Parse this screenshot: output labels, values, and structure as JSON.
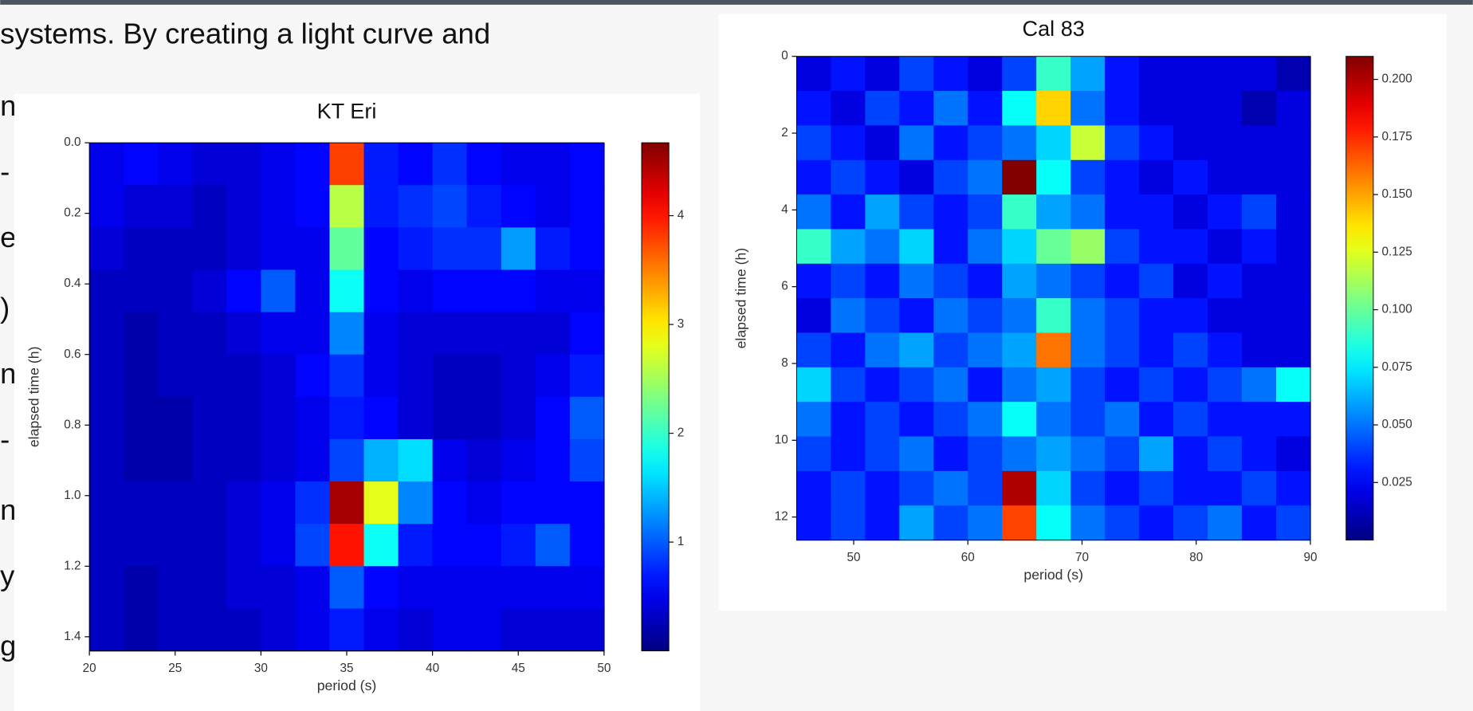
{
  "slide_text": {
    "line": "systems. By creating a light curve and",
    "margin_fragments": [
      "n",
      "-",
      "e",
      ")",
      "n",
      "-",
      "n",
      "y",
      "g"
    ]
  },
  "chart_data": [
    {
      "type": "heatmap",
      "title": "KT Eri",
      "xlabel": "period (s)",
      "ylabel": "elapsed time (h)",
      "xlim": [
        20,
        50
      ],
      "ylim": [
        0,
        1.44
      ],
      "y_axis_inverted": true,
      "xticks": [
        20,
        25,
        30,
        35,
        40,
        45,
        50
      ],
      "yticks": [
        {
          "value": 0,
          "label": "0.0"
        },
        0.2,
        0.4,
        0.6,
        0.8,
        {
          "value": 1,
          "label": "1.0"
        },
        1.2,
        1.4
      ],
      "clim": [
        0,
        4.67
      ],
      "cticks": [
        1,
        2,
        3,
        4
      ],
      "colormap": "jet",
      "z": [
        [
          0.5,
          0.6,
          0.5,
          0.4,
          0.4,
          0.5,
          0.6,
          3.8,
          0.7,
          0.6,
          0.8,
          0.6,
          0.5,
          0.5,
          0.6
        ],
        [
          0.5,
          0.4,
          0.4,
          0.3,
          0.4,
          0.5,
          0.6,
          2.6,
          0.7,
          0.8,
          0.9,
          0.7,
          0.6,
          0.5,
          0.6
        ],
        [
          0.4,
          0.3,
          0.3,
          0.3,
          0.4,
          0.5,
          0.5,
          2.2,
          0.6,
          0.7,
          0.8,
          0.8,
          1.3,
          0.7,
          0.6
        ],
        [
          0.3,
          0.3,
          0.3,
          0.4,
          0.6,
          1.0,
          0.5,
          1.8,
          0.6,
          0.5,
          0.6,
          0.6,
          0.6,
          0.5,
          0.5
        ],
        [
          0.3,
          0.2,
          0.3,
          0.3,
          0.4,
          0.5,
          0.5,
          1.2,
          0.5,
          0.4,
          0.4,
          0.4,
          0.4,
          0.4,
          0.6
        ],
        [
          0.3,
          0.2,
          0.3,
          0.3,
          0.3,
          0.4,
          0.6,
          0.8,
          0.5,
          0.4,
          0.3,
          0.3,
          0.4,
          0.5,
          0.7
        ],
        [
          0.3,
          0.2,
          0.2,
          0.3,
          0.3,
          0.4,
          0.5,
          0.7,
          0.6,
          0.4,
          0.3,
          0.3,
          0.4,
          0.6,
          1.0
        ],
        [
          0.3,
          0.2,
          0.2,
          0.3,
          0.3,
          0.4,
          0.5,
          0.9,
          1.4,
          1.6,
          0.5,
          0.4,
          0.5,
          0.6,
          0.9
        ],
        [
          0.3,
          0.3,
          0.3,
          0.3,
          0.4,
          0.5,
          0.8,
          4.5,
          2.8,
          1.2,
          0.6,
          0.5,
          0.6,
          0.6,
          0.6
        ],
        [
          0.3,
          0.3,
          0.3,
          0.3,
          0.4,
          0.5,
          0.9,
          4.0,
          1.8,
          0.7,
          0.6,
          0.6,
          0.7,
          1.0,
          0.6
        ],
        [
          0.3,
          0.2,
          0.3,
          0.3,
          0.4,
          0.4,
          0.5,
          1.0,
          0.6,
          0.5,
          0.5,
          0.5,
          0.5,
          0.5,
          0.5
        ],
        [
          0.3,
          0.2,
          0.3,
          0.3,
          0.3,
          0.4,
          0.5,
          0.7,
          0.5,
          0.4,
          0.5,
          0.5,
          0.4,
          0.4,
          0.4
        ]
      ]
    },
    {
      "type": "heatmap",
      "title": "Cal 83",
      "xlabel": "period (s)",
      "ylabel": "elapsed time (h)",
      "xlim": [
        45,
        90
      ],
      "ylim": [
        0,
        12.6
      ],
      "y_axis_inverted": true,
      "xticks": [
        50,
        60,
        70,
        80,
        90
      ],
      "yticks": [
        0,
        2,
        4,
        6,
        8,
        10,
        12
      ],
      "clim": [
        0,
        0.21
      ],
      "cticks": [
        0.025,
        {
          "value": 0.05,
          "label": "0.050"
        },
        0.075,
        {
          "value": 0.1,
          "label": "0.100"
        },
        0.125,
        {
          "value": 0.15,
          "label": "0.150"
        },
        0.175,
        {
          "value": 0.2,
          "label": "0.200"
        }
      ],
      "colormap": "jet",
      "z": [
        [
          0.02,
          0.03,
          0.02,
          0.04,
          0.03,
          0.02,
          0.04,
          0.09,
          0.06,
          0.03,
          0.02,
          0.02,
          0.02,
          0.02,
          0.01
        ],
        [
          0.03,
          0.02,
          0.04,
          0.03,
          0.05,
          0.03,
          0.08,
          0.14,
          0.05,
          0.03,
          0.02,
          0.02,
          0.02,
          0.01,
          0.02
        ],
        [
          0.04,
          0.03,
          0.02,
          0.05,
          0.03,
          0.04,
          0.05,
          0.07,
          0.12,
          0.04,
          0.03,
          0.02,
          0.02,
          0.02,
          0.02
        ],
        [
          0.03,
          0.04,
          0.03,
          0.02,
          0.04,
          0.05,
          0.21,
          0.08,
          0.04,
          0.03,
          0.02,
          0.03,
          0.02,
          0.02,
          0.02
        ],
        [
          0.05,
          0.03,
          0.06,
          0.04,
          0.03,
          0.04,
          0.09,
          0.06,
          0.05,
          0.03,
          0.03,
          0.02,
          0.03,
          0.04,
          0.02
        ],
        [
          0.09,
          0.06,
          0.05,
          0.07,
          0.03,
          0.05,
          0.07,
          0.1,
          0.11,
          0.04,
          0.03,
          0.03,
          0.02,
          0.03,
          0.02
        ],
        [
          0.03,
          0.04,
          0.03,
          0.05,
          0.04,
          0.03,
          0.06,
          0.05,
          0.04,
          0.03,
          0.04,
          0.02,
          0.03,
          0.02,
          0.02
        ],
        [
          0.02,
          0.05,
          0.04,
          0.03,
          0.05,
          0.04,
          0.05,
          0.09,
          0.05,
          0.04,
          0.03,
          0.03,
          0.02,
          0.02,
          0.02
        ],
        [
          0.04,
          0.03,
          0.05,
          0.06,
          0.04,
          0.05,
          0.06,
          0.16,
          0.05,
          0.04,
          0.03,
          0.04,
          0.03,
          0.02,
          0.02
        ],
        [
          0.07,
          0.04,
          0.03,
          0.04,
          0.05,
          0.03,
          0.05,
          0.06,
          0.04,
          0.03,
          0.04,
          0.03,
          0.04,
          0.05,
          0.08
        ],
        [
          0.05,
          0.03,
          0.04,
          0.03,
          0.04,
          0.05,
          0.08,
          0.05,
          0.04,
          0.05,
          0.03,
          0.04,
          0.03,
          0.03,
          0.03
        ],
        [
          0.04,
          0.03,
          0.04,
          0.05,
          0.03,
          0.04,
          0.05,
          0.06,
          0.05,
          0.04,
          0.06,
          0.03,
          0.04,
          0.03,
          0.02
        ],
        [
          0.03,
          0.04,
          0.03,
          0.04,
          0.05,
          0.04,
          0.2,
          0.07,
          0.04,
          0.03,
          0.04,
          0.03,
          0.03,
          0.04,
          0.03
        ],
        [
          0.03,
          0.04,
          0.03,
          0.06,
          0.04,
          0.05,
          0.17,
          0.08,
          0.05,
          0.04,
          0.03,
          0.04,
          0.05,
          0.03,
          0.04
        ]
      ]
    }
  ]
}
